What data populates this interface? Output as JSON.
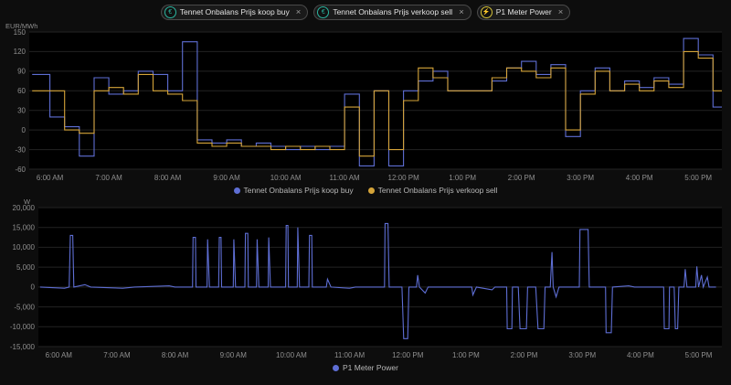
{
  "header": {
    "chips": [
      {
        "label": "Tennet Onbalans Prijs koop buy",
        "icon": "currency-icon",
        "icon_glyph": "€",
        "icon_color": "#2bb5a0",
        "close": "×"
      },
      {
        "label": "Tennet Onbalans Prijs verkoop sell",
        "icon": "currency-icon",
        "icon_glyph": "€",
        "icon_color": "#2bb5a0",
        "close": "×"
      },
      {
        "label": "P1 Meter Power",
        "icon": "flash-icon",
        "icon_glyph": "⚡",
        "icon_color": "#d6c33a",
        "close": "×"
      }
    ]
  },
  "colors": {
    "background": "#0d0d0d",
    "plot_background": "#000000",
    "grid": "#232323",
    "axis_text": "#8f8f8f",
    "series_blue": "#5e6ed4",
    "series_yellow": "#d5a439"
  },
  "chart_data": [
    {
      "type": "line",
      "title": "",
      "ylabel": "EUR/MWh",
      "xlabel": "",
      "step": true,
      "grid": true,
      "legend_position": "bottom",
      "xlim": [
        5.65,
        17.4
      ],
      "ylim": [
        -60,
        150
      ],
      "y_ticks": [
        150,
        120,
        90,
        60,
        30,
        0,
        -30,
        -60
      ],
      "y_tick_labels": [
        "150",
        "120",
        "90",
        "60",
        "30",
        "0",
        "-30",
        "-60"
      ],
      "x_tick_values": [
        6,
        7,
        8,
        9,
        10,
        11,
        12,
        13,
        14,
        15,
        16,
        17
      ],
      "x_ticks": [
        "6:00 AM",
        "7:00 AM",
        "8:00 AM",
        "9:00 AM",
        "10:00 AM",
        "11:00 AM",
        "12:00 PM",
        "1:00 PM",
        "2:00 PM",
        "3:00 PM",
        "4:00 PM",
        "5:00 PM"
      ],
      "series": [
        {
          "name": "Tennet Onbalans Prijs koop buy",
          "color": "#5e6ed4",
          "x": [
            5.7,
            6.0,
            6.25,
            6.5,
            6.75,
            7.0,
            7.25,
            7.5,
            7.75,
            8.0,
            8.25,
            8.5,
            8.75,
            9.0,
            9.25,
            9.5,
            9.75,
            10.0,
            10.25,
            10.5,
            10.75,
            11.0,
            11.25,
            11.5,
            11.75,
            12.0,
            12.25,
            12.5,
            12.75,
            13.0,
            13.25,
            13.5,
            13.75,
            14.0,
            14.25,
            14.5,
            14.75,
            15.0,
            15.25,
            15.5,
            15.75,
            16.0,
            16.25,
            16.5,
            16.75,
            17.0,
            17.25
          ],
          "values": [
            85,
            20,
            5,
            -40,
            80,
            55,
            60,
            90,
            85,
            60,
            135,
            -15,
            -20,
            -15,
            -25,
            -20,
            -25,
            -30,
            -25,
            -30,
            -25,
            55,
            -55,
            60,
            -55,
            60,
            75,
            90,
            60,
            60,
            60,
            75,
            95,
            105,
            85,
            100,
            -10,
            60,
            95,
            60,
            75,
            65,
            80,
            70,
            140,
            115,
            35
          ]
        },
        {
          "name": "Tennet Onbalans Prijs verkoop sell",
          "color": "#d5a439",
          "x": [
            5.7,
            6.0,
            6.25,
            6.5,
            6.75,
            7.0,
            7.25,
            7.5,
            7.75,
            8.0,
            8.25,
            8.5,
            8.75,
            9.0,
            9.25,
            9.5,
            9.75,
            10.0,
            10.25,
            10.5,
            10.75,
            11.0,
            11.25,
            11.5,
            11.75,
            12.0,
            12.25,
            12.5,
            12.75,
            13.0,
            13.25,
            13.5,
            13.75,
            14.0,
            14.25,
            14.5,
            14.75,
            15.0,
            15.25,
            15.5,
            15.75,
            16.0,
            16.25,
            16.5,
            16.75,
            17.0,
            17.25
          ],
          "values": [
            60,
            60,
            0,
            -5,
            60,
            65,
            55,
            85,
            60,
            55,
            45,
            -20,
            -25,
            -20,
            -25,
            -25,
            -30,
            -25,
            -30,
            -25,
            -30,
            35,
            -40,
            60,
            -30,
            45,
            95,
            80,
            60,
            60,
            60,
            80,
            95,
            90,
            80,
            95,
            0,
            55,
            90,
            60,
            70,
            60,
            75,
            65,
            120,
            110,
            60
          ]
        }
      ]
    },
    {
      "type": "line",
      "title": "",
      "ylabel": "W",
      "xlabel": "",
      "step": false,
      "grid": true,
      "legend_position": "bottom",
      "xlim": [
        5.65,
        17.4
      ],
      "ylim": [
        -15000,
        20000
      ],
      "y_ticks": [
        20000,
        15000,
        10000,
        5000,
        0,
        -5000,
        -10000,
        -15000
      ],
      "y_tick_labels": [
        "20,000",
        "15,000",
        "10,000",
        "5,000",
        "0",
        "-5,000",
        "-10,000",
        "-15,000"
      ],
      "x_tick_values": [
        6,
        7,
        8,
        9,
        10,
        11,
        12,
        13,
        14,
        15,
        16,
        17
      ],
      "x_ticks": [
        "6:00 AM",
        "7:00 AM",
        "8:00 AM",
        "9:00 AM",
        "10:00 AM",
        "11:00 AM",
        "12:00 PM",
        "1:00 PM",
        "2:00 PM",
        "3:00 PM",
        "4:00 PM",
        "5:00 PM"
      ],
      "series": [
        {
          "name": "P1 Meter Power",
          "color": "#5e6ed4",
          "points": [
            [
              5.68,
              0
            ],
            [
              6.1,
              -300
            ],
            [
              6.18,
              0
            ],
            [
              6.2,
              13000
            ],
            [
              6.24,
              13000
            ],
            [
              6.26,
              0
            ],
            [
              6.45,
              600
            ],
            [
              6.55,
              0
            ],
            [
              7.1,
              -300
            ],
            [
              7.3,
              0
            ],
            [
              7.9,
              300
            ],
            [
              8.0,
              0
            ],
            [
              8.3,
              0
            ],
            [
              8.31,
              12500
            ],
            [
              8.35,
              12500
            ],
            [
              8.36,
              0
            ],
            [
              8.55,
              0
            ],
            [
              8.56,
              12000
            ],
            [
              8.59,
              0
            ],
            [
              8.75,
              0
            ],
            [
              8.76,
              12500
            ],
            [
              8.79,
              12500
            ],
            [
              8.8,
              0
            ],
            [
              9.0,
              0
            ],
            [
              9.01,
              12000
            ],
            [
              9.04,
              0
            ],
            [
              9.2,
              0
            ],
            [
              9.21,
              13500
            ],
            [
              9.25,
              13500
            ],
            [
              9.26,
              0
            ],
            [
              9.4,
              0
            ],
            [
              9.41,
              12000
            ],
            [
              9.44,
              0
            ],
            [
              9.6,
              0
            ],
            [
              9.61,
              12500
            ],
            [
              9.64,
              0
            ],
            [
              9.9,
              0
            ],
            [
              9.91,
              15500
            ],
            [
              9.94,
              15500
            ],
            [
              9.95,
              0
            ],
            [
              10.1,
              0
            ],
            [
              10.11,
              15000
            ],
            [
              10.14,
              0
            ],
            [
              10.3,
              0
            ],
            [
              10.31,
              13000
            ],
            [
              10.35,
              13000
            ],
            [
              10.36,
              0
            ],
            [
              10.6,
              0
            ],
            [
              10.62,
              2000
            ],
            [
              10.68,
              0
            ],
            [
              11.0,
              -300
            ],
            [
              11.1,
              0
            ],
            [
              11.6,
              0
            ],
            [
              11.61,
              16000
            ],
            [
              11.66,
              16000
            ],
            [
              11.68,
              0
            ],
            [
              11.9,
              0
            ],
            [
              11.93,
              -13000
            ],
            [
              12.0,
              -13000
            ],
            [
              12.02,
              0
            ],
            [
              12.15,
              0
            ],
            [
              12.17,
              3000
            ],
            [
              12.2,
              0
            ],
            [
              12.3,
              -1500
            ],
            [
              12.35,
              0
            ],
            [
              12.8,
              0
            ],
            [
              13.1,
              0
            ],
            [
              13.12,
              -2000
            ],
            [
              13.18,
              0
            ],
            [
              13.45,
              -700
            ],
            [
              13.5,
              0
            ],
            [
              13.7,
              0
            ],
            [
              13.71,
              -10500
            ],
            [
              13.79,
              -10500
            ],
            [
              13.8,
              0
            ],
            [
              13.9,
              0
            ],
            [
              13.93,
              -10500
            ],
            [
              14.04,
              -10500
            ],
            [
              14.06,
              0
            ],
            [
              14.2,
              0
            ],
            [
              14.24,
              -10500
            ],
            [
              14.34,
              -10500
            ],
            [
              14.36,
              0
            ],
            [
              14.45,
              0
            ],
            [
              14.48,
              8800
            ],
            [
              14.5,
              0
            ],
            [
              14.55,
              -2500
            ],
            [
              14.6,
              0
            ],
            [
              14.95,
              0
            ],
            [
              14.96,
              14500
            ],
            [
              15.1,
              14500
            ],
            [
              15.12,
              0
            ],
            [
              15.4,
              0
            ],
            [
              15.41,
              -11500
            ],
            [
              15.5,
              -11500
            ],
            [
              15.52,
              0
            ],
            [
              15.8,
              300
            ],
            [
              15.9,
              0
            ],
            [
              16.4,
              0
            ],
            [
              16.41,
              -10500
            ],
            [
              16.49,
              -10500
            ],
            [
              16.5,
              0
            ],
            [
              16.58,
              0
            ],
            [
              16.6,
              -10500
            ],
            [
              16.64,
              -10500
            ],
            [
              16.66,
              0
            ],
            [
              16.75,
              0
            ],
            [
              16.77,
              4500
            ],
            [
              16.8,
              0
            ],
            [
              16.95,
              0
            ],
            [
              16.97,
              5200
            ],
            [
              17.0,
              0
            ],
            [
              17.05,
              3000
            ],
            [
              17.08,
              0
            ],
            [
              17.15,
              2500
            ],
            [
              17.18,
              0
            ],
            [
              17.3,
              0
            ]
          ]
        }
      ]
    }
  ]
}
